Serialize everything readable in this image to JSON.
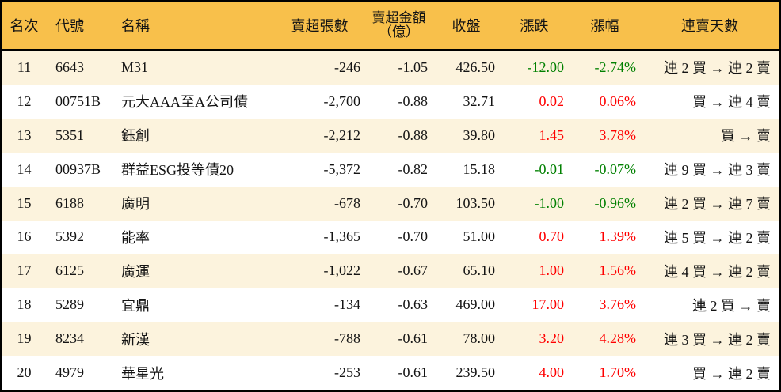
{
  "colors": {
    "header_bg": "#F8C04B",
    "row_alt_bg": "#FCF3DD",
    "row_bg": "#FFFFFF",
    "text": "#141414",
    "up_red": "#FF0000",
    "down_green": "#008000",
    "border": "#000000"
  },
  "chart_data": {
    "type": "table",
    "columns": [
      {
        "key": "rank",
        "label": "名次"
      },
      {
        "key": "code",
        "label": "代號"
      },
      {
        "key": "name",
        "label": "名稱"
      },
      {
        "key": "sell_volume",
        "label": "賣超張數"
      },
      {
        "key": "sell_amount",
        "label": "賣超金額",
        "label2": "（億）"
      },
      {
        "key": "close",
        "label": "收盤"
      },
      {
        "key": "change",
        "label": "漲跌"
      },
      {
        "key": "change_pct",
        "label": "漲幅"
      },
      {
        "key": "streak",
        "label": "連賣天數"
      }
    ],
    "rows": [
      {
        "rank": "11",
        "code": "6643",
        "name": "M31",
        "sell_volume": "-246",
        "sell_amount": "-1.05",
        "close": "426.50",
        "change": "-12.00",
        "change_pct": "-2.74%",
        "streak": "連 2 買 → 連 2 賣",
        "trend": "down"
      },
      {
        "rank": "12",
        "code": "00751B",
        "name": "元大AAA至A公司債",
        "sell_volume": "-2,700",
        "sell_amount": "-0.88",
        "close": "32.71",
        "change": "0.02",
        "change_pct": "0.06%",
        "streak": "買 → 連 4 賣",
        "trend": "up"
      },
      {
        "rank": "13",
        "code": "5351",
        "name": "鈺創",
        "sell_volume": "-2,212",
        "sell_amount": "-0.88",
        "close": "39.80",
        "change": "1.45",
        "change_pct": "3.78%",
        "streak": "買 → 賣",
        "trend": "up"
      },
      {
        "rank": "14",
        "code": "00937B",
        "name": "群益ESG投等債20",
        "sell_volume": "-5,372",
        "sell_amount": "-0.82",
        "close": "15.18",
        "change": "-0.01",
        "change_pct": "-0.07%",
        "streak": "連 9 買 → 連 3 賣",
        "trend": "down"
      },
      {
        "rank": "15",
        "code": "6188",
        "name": "廣明",
        "sell_volume": "-678",
        "sell_amount": "-0.70",
        "close": "103.50",
        "change": "-1.00",
        "change_pct": "-0.96%",
        "streak": "連 2 買 → 連 7 賣",
        "trend": "down"
      },
      {
        "rank": "16",
        "code": "5392",
        "name": "能率",
        "sell_volume": "-1,365",
        "sell_amount": "-0.70",
        "close": "51.00",
        "change": "0.70",
        "change_pct": "1.39%",
        "streak": "連 5 買 → 連 2 賣",
        "trend": "up"
      },
      {
        "rank": "17",
        "code": "6125",
        "name": "廣運",
        "sell_volume": "-1,022",
        "sell_amount": "-0.67",
        "close": "65.10",
        "change": "1.00",
        "change_pct": "1.56%",
        "streak": "連 4 買 → 連 2 賣",
        "trend": "up"
      },
      {
        "rank": "18",
        "code": "5289",
        "name": "宜鼎",
        "sell_volume": "-134",
        "sell_amount": "-0.63",
        "close": "469.00",
        "change": "17.00",
        "change_pct": "3.76%",
        "streak": "連 2 買 → 賣",
        "trend": "up"
      },
      {
        "rank": "19",
        "code": "8234",
        "name": "新漢",
        "sell_volume": "-788",
        "sell_amount": "-0.61",
        "close": "78.00",
        "change": "3.20",
        "change_pct": "4.28%",
        "streak": "連 3 買 → 連 2 賣",
        "trend": "up"
      },
      {
        "rank": "20",
        "code": "4979",
        "name": "華星光",
        "sell_volume": "-253",
        "sell_amount": "-0.61",
        "close": "239.50",
        "change": "4.00",
        "change_pct": "1.70%",
        "streak": "買 → 連 2 賣",
        "trend": "up"
      }
    ]
  }
}
